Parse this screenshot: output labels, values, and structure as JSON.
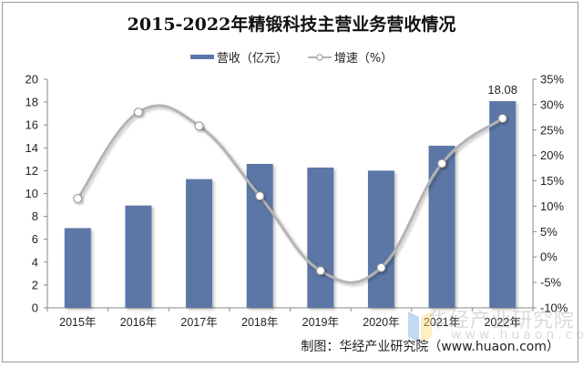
{
  "title": "2015-2022年精锻科技主营业务营收情况",
  "legend": {
    "revenue_label": "营收（亿元）",
    "growth_label": "增速（%）"
  },
  "colors": {
    "bar": "#5b77a6",
    "line": "#b3b3b3",
    "marker_fill": "#ffffff",
    "axis": "#888888"
  },
  "footer": {
    "source": "制图：华经产业研究院（www.huaon.com）"
  },
  "watermark": {
    "text": "华经产业研究院",
    "url": "www.huaon.com"
  },
  "chart_data": {
    "type": "bar+line",
    "title": "2015-2022年精锻科技主营业务营收情况",
    "categories": [
      "2015年",
      "2016年",
      "2017年",
      "2018年",
      "2019年",
      "2020年",
      "2021年",
      "2022年"
    ],
    "series": [
      {
        "name": "营收（亿元）",
        "type": "bar",
        "axis": "left",
        "values": [
          6.97,
          8.95,
          11.26,
          12.59,
          12.27,
          12.0,
          14.18,
          18.08
        ]
      },
      {
        "name": "增速（%）",
        "type": "line",
        "axis": "right",
        "smooth": true,
        "values": [
          11.5,
          28.5,
          25.8,
          12.0,
          -2.7,
          -2.1,
          18.4,
          27.3
        ]
      }
    ],
    "data_labels": [
      {
        "category": "2022年",
        "series": "营收（亿元）",
        "text": "18.08"
      }
    ],
    "left_axis": {
      "min": 0,
      "max": 20,
      "step": 2,
      "ticks": [
        "0",
        "2",
        "4",
        "6",
        "8",
        "10",
        "12",
        "14",
        "16",
        "18",
        "20"
      ]
    },
    "right_axis": {
      "min": -10,
      "max": 35,
      "step": 5,
      "ticks": [
        "-10%",
        "-5%",
        "0%",
        "5%",
        "10%",
        "15%",
        "20%",
        "25%",
        "30%",
        "35%"
      ]
    },
    "xlabel": "",
    "ylabel": "",
    "grid": false,
    "legend_position": "top"
  }
}
